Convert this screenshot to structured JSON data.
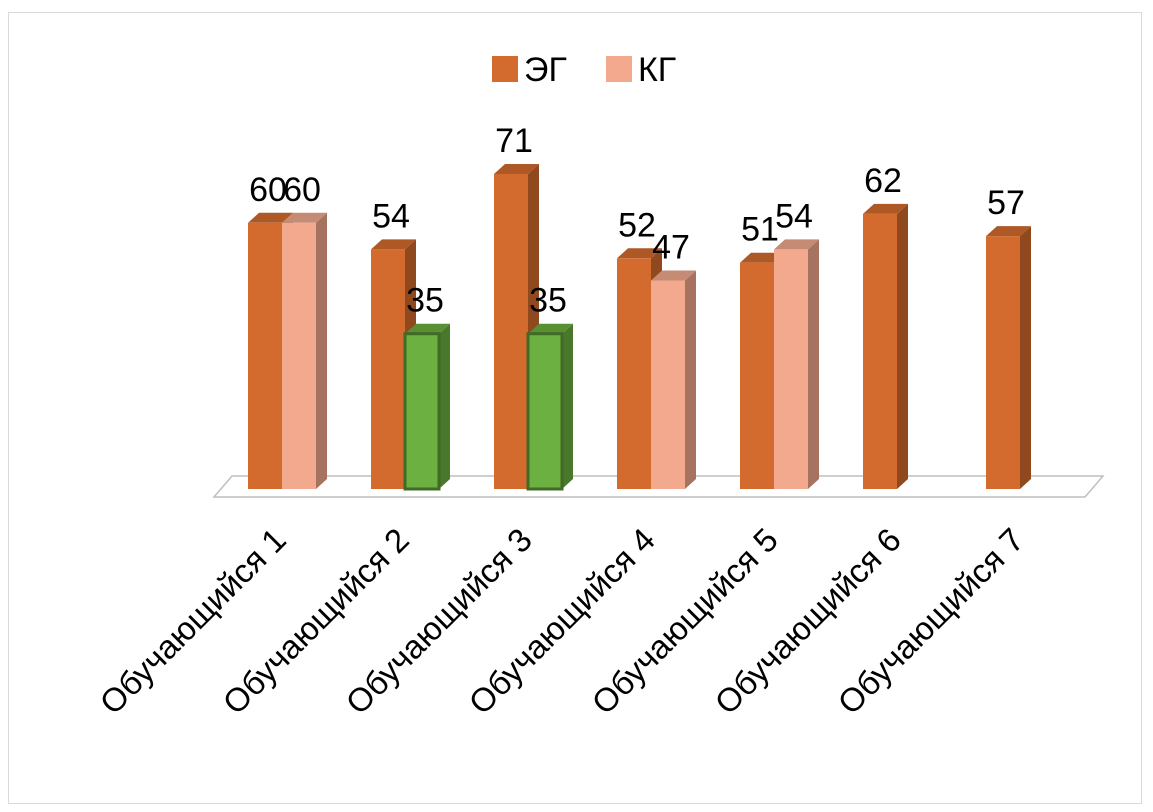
{
  "chart_data": {
    "type": "bar",
    "categories": [
      "Обучающийся 1",
      "Обучающийся 2",
      "Обучающийся 3",
      "Обучающийся 4",
      "Обучающийся 5",
      "Обучающийся 6",
      "Обучающийся 7"
    ],
    "series": [
      {
        "name": "ЭГ",
        "values": [
          60,
          54,
          71,
          52,
          51,
          62,
          57
        ],
        "color": "#d46b2e"
      },
      {
        "name": "КГ",
        "values": [
          60,
          35,
          35,
          47,
          54,
          null,
          null
        ],
        "color": "#f2a98d"
      }
    ],
    "highlight_color": "#6bb040",
    "highlighted_points": [
      {
        "series": "КГ",
        "category": "Обучающийся 2"
      },
      {
        "series": "КГ",
        "category": "Обучающийся 3"
      }
    ],
    "ylim": [
      0,
      80
    ],
    "legend_position": "top",
    "grid": false,
    "style": "3d-column"
  }
}
